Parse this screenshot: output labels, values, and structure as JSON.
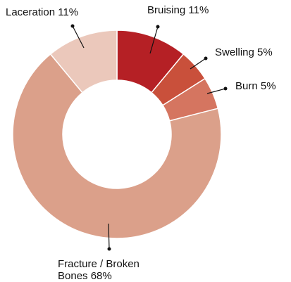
{
  "chart_data": {
    "type": "donut",
    "categories": [
      "Bruising",
      "Swelling",
      "Burn",
      "Fracture / Broken Bones",
      "Laceration"
    ],
    "values": [
      11,
      5,
      5,
      68,
      11
    ],
    "value_labels": [
      "11%",
      "5%",
      "5%",
      "68%",
      "11%"
    ],
    "colors": [
      "#b52025",
      "#c9503b",
      "#d57560",
      "#dba08a",
      "#ebc8bb"
    ]
  }
}
